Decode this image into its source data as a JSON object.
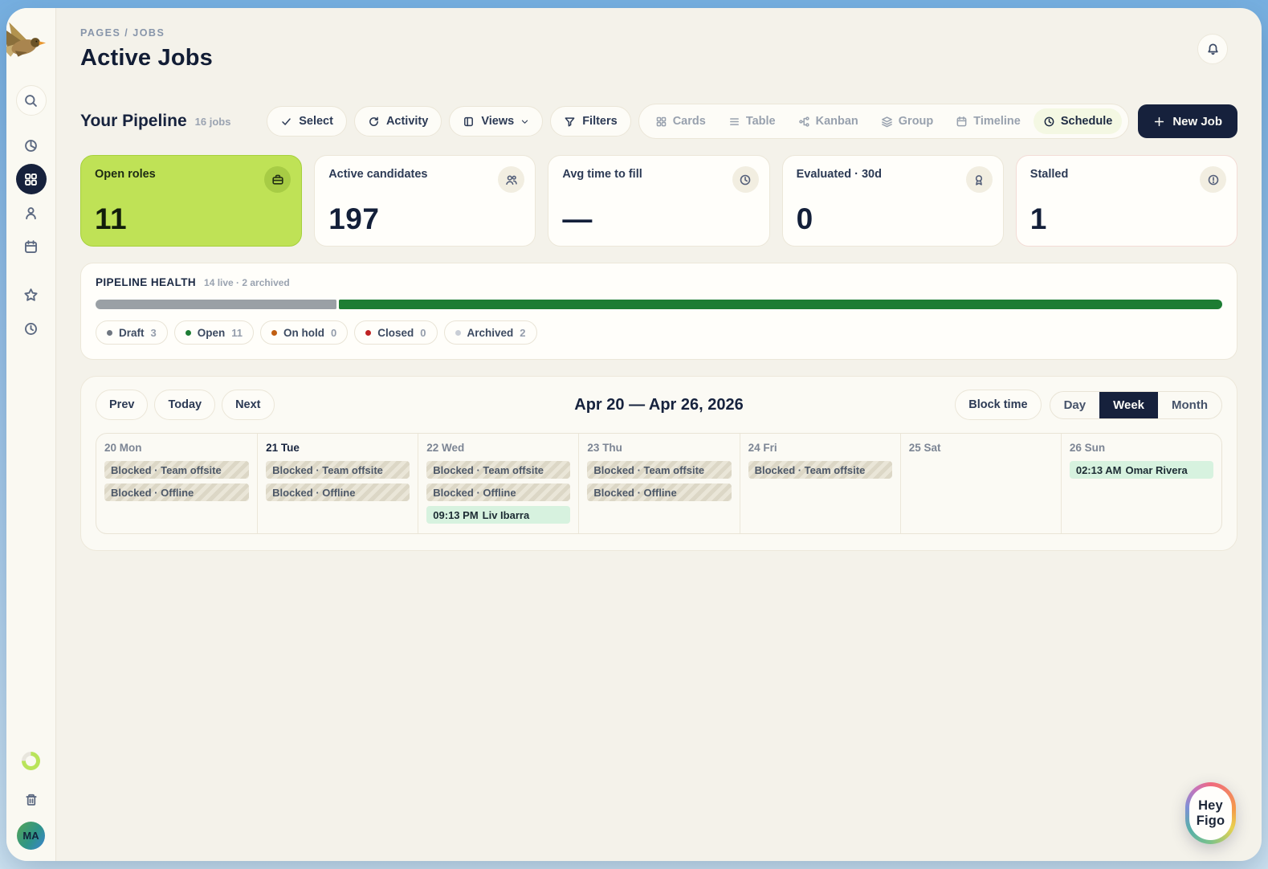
{
  "page": {
    "breadcrumb": "PAGES / JOBS",
    "title": "Active Jobs"
  },
  "header": {
    "bell_icon": "bell-icon"
  },
  "sidebar": {
    "logo_icon": "duck-logo",
    "nav": [
      {
        "icon": "search-icon",
        "style": "ring",
        "active": false
      },
      {
        "icon": "pie-chart-icon",
        "active": false
      },
      {
        "icon": "grid-icon",
        "active": true
      },
      {
        "icon": "person-icon",
        "active": false
      },
      {
        "icon": "calendar-icon",
        "active": false
      },
      {
        "icon": "star-icon",
        "active": false,
        "gap": true
      },
      {
        "icon": "clock-icon",
        "active": false
      }
    ],
    "spinner_icon": "loading-spinner",
    "trash_icon": "trash-icon",
    "avatar": "MA"
  },
  "pipeline": {
    "title": "Your Pipeline",
    "count": "16 jobs",
    "actions": [
      {
        "label": "Select",
        "icon": "check-icon"
      },
      {
        "label": "Activity",
        "icon": "history-icon"
      },
      {
        "label": "Views",
        "icon": "panel-icon",
        "chevron": true
      },
      {
        "label": "Filters",
        "icon": "funnel-icon"
      }
    ],
    "view_tabs": [
      {
        "label": "Cards",
        "icon": "cards-icon",
        "active": false
      },
      {
        "label": "Table",
        "icon": "table-icon",
        "active": false
      },
      {
        "label": "Kanban",
        "icon": "kanban-icon",
        "active": false
      },
      {
        "label": "Group",
        "icon": "layers-icon",
        "active": false
      },
      {
        "label": "Timeline",
        "icon": "timeline-icon",
        "active": false
      },
      {
        "label": "Schedule",
        "icon": "schedule-icon",
        "active": true
      }
    ],
    "new_job_label": "New Job",
    "new_job_icon": "plus-icon"
  },
  "stats": [
    {
      "label": "Open roles",
      "value": "11",
      "icon": "briefcase-icon",
      "variant": "lime"
    },
    {
      "label": "Active candidates",
      "value": "197",
      "icon": "users-icon",
      "variant": "default"
    },
    {
      "label": "Avg time to fill",
      "value": "—",
      "icon": "clock-icon",
      "variant": "default"
    },
    {
      "label": "Evaluated · 30d",
      "value": "0",
      "icon": "award-icon",
      "variant": "default"
    },
    {
      "label": "Stalled",
      "value": "1",
      "icon": "alert-icon",
      "variant": "alert"
    }
  ],
  "health": {
    "title": "PIPELINE HEALTH",
    "subtitle": "14 live · 2 archived",
    "bar": [
      {
        "color": "#9aa0a5",
        "pct": 21.4
      },
      {
        "color": "#1d7d33",
        "pct": 78.6
      }
    ],
    "legend": [
      {
        "label": "Draft",
        "count": "3",
        "color": "#6f7680"
      },
      {
        "label": "Open",
        "count": "11",
        "color": "#1d7c34"
      },
      {
        "label": "On hold",
        "count": "0",
        "color": "#c05e12"
      },
      {
        "label": "Closed",
        "count": "0",
        "color": "#bf2222"
      },
      {
        "label": "Archived",
        "count": "2",
        "color": "#c9ced6"
      }
    ]
  },
  "calendar": {
    "nav": [
      "Prev",
      "Today",
      "Next"
    ],
    "range_title": "Apr 20 — Apr 26, 2026",
    "block_time_label": "Block time",
    "view_modes": [
      {
        "label": "Day",
        "active": false
      },
      {
        "label": "Week",
        "active": true
      },
      {
        "label": "Month",
        "active": false
      }
    ],
    "days": [
      {
        "label": "20 Mon",
        "today": false,
        "events": [
          {
            "kind": "blocked",
            "text": "Blocked · Team offsite"
          },
          {
            "kind": "blocked",
            "text": "Blocked · Offline"
          }
        ]
      },
      {
        "label": "21 Tue",
        "today": true,
        "events": [
          {
            "kind": "blocked",
            "text": "Blocked · Team offsite"
          },
          {
            "kind": "blocked",
            "text": "Blocked · Offline"
          }
        ]
      },
      {
        "label": "22 Wed",
        "today": false,
        "events": [
          {
            "kind": "blocked",
            "text": "Blocked · Team offsite"
          },
          {
            "kind": "blocked",
            "text": "Blocked · Offline"
          },
          {
            "kind": "booked",
            "time": "09:13 PM",
            "name": "Liv Ibarra"
          }
        ]
      },
      {
        "label": "23 Thu",
        "today": false,
        "events": [
          {
            "kind": "blocked",
            "text": "Blocked · Team offsite"
          },
          {
            "kind": "blocked",
            "text": "Blocked · Offline"
          }
        ]
      },
      {
        "label": "24 Fri",
        "today": false,
        "events": [
          {
            "kind": "blocked",
            "text": "Blocked · Team offsite"
          }
        ]
      },
      {
        "label": "25 Sat",
        "today": false,
        "events": []
      },
      {
        "label": "26 Sun",
        "today": false,
        "events": [
          {
            "kind": "booked",
            "time": "02:13 AM",
            "name": "Omar Rivera"
          }
        ]
      }
    ]
  },
  "assistant": {
    "line1": "Hey",
    "line2": "Figo"
  },
  "colors": {
    "accent_lime": "#bfe256",
    "navy": "#16213c",
    "bar_green": "#1d7d33",
    "bar_gray": "#9aa0a5",
    "event_green_bg": "#d7f2df",
    "outer_blue": "#77b0e1"
  }
}
